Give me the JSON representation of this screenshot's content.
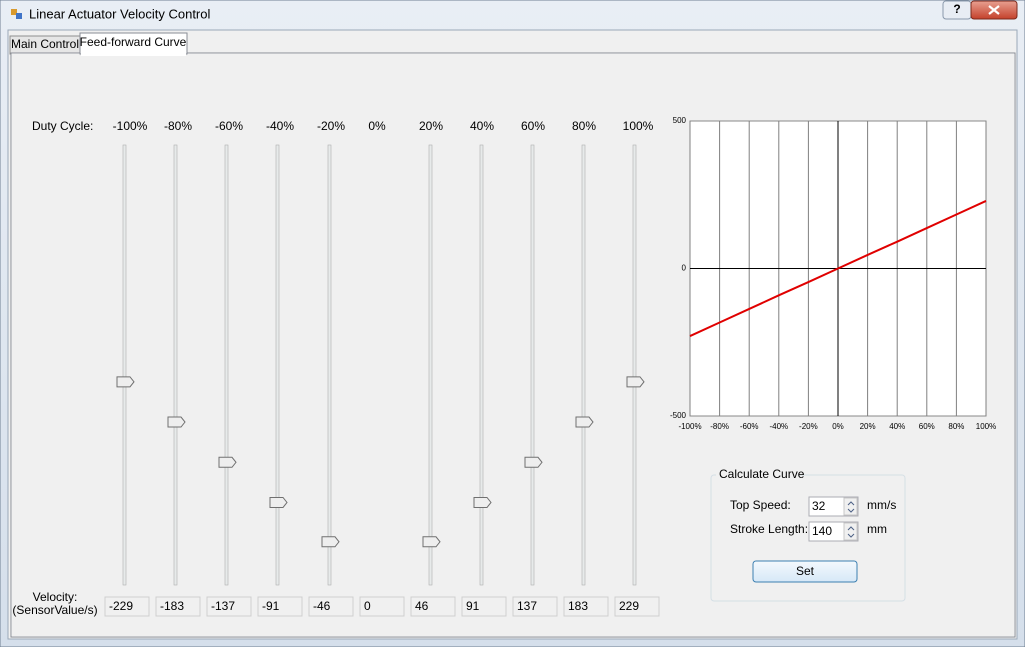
{
  "window": {
    "title": "Linear Actuator Velocity Control",
    "help_button": "?"
  },
  "tabs": [
    "Main Control",
    "Feed-forward Curve"
  ],
  "duty_cycle_label": "Duty Cycle:",
  "duty_cycles": [
    "-100%",
    "-80%",
    "-60%",
    "-40%",
    "-20%",
    "0%",
    "20%",
    "40%",
    "60%",
    "80%",
    "100%"
  ],
  "velocity_label": [
    "Velocity:",
    "(SensorValue/s)"
  ],
  "slider_range": [
    0,
    500
  ],
  "chart_data": {
    "type": "line",
    "x": [
      -100,
      -80,
      -60,
      -40,
      -20,
      0,
      20,
      40,
      60,
      80,
      100
    ],
    "series": [
      {
        "color": "#e00000",
        "values": [
          -229,
          -183,
          -137,
          -91,
          -46,
          0,
          46,
          91,
          137,
          183,
          229
        ]
      }
    ],
    "xlim": [
      -100,
      100
    ],
    "ylim": [
      -500,
      500
    ],
    "xticks": [
      {
        "value": -100,
        "label": "-100%"
      },
      {
        "value": -80,
        "label": "-80%"
      },
      {
        "value": -60,
        "label": "-60%"
      },
      {
        "value": -40,
        "label": "-40%"
      },
      {
        "value": -20,
        "label": "-20%"
      },
      {
        "value": 0,
        "label": "0%"
      },
      {
        "value": 20,
        "label": "20%"
      },
      {
        "value": 40,
        "label": "40%"
      },
      {
        "value": 60,
        "label": "60%"
      },
      {
        "value": 80,
        "label": "80%"
      },
      {
        "value": 100,
        "label": "100%"
      }
    ],
    "yticks": [
      -500,
      0,
      500
    ],
    "grid": true
  },
  "calculate_curve": {
    "title": "Calculate Curve",
    "top_speed": {
      "label": "Top Speed:",
      "value": 32,
      "unit": "mm/s"
    },
    "stroke_length": {
      "label": "Stroke Length:",
      "value": 140,
      "unit": "mm"
    },
    "button": "Set"
  }
}
